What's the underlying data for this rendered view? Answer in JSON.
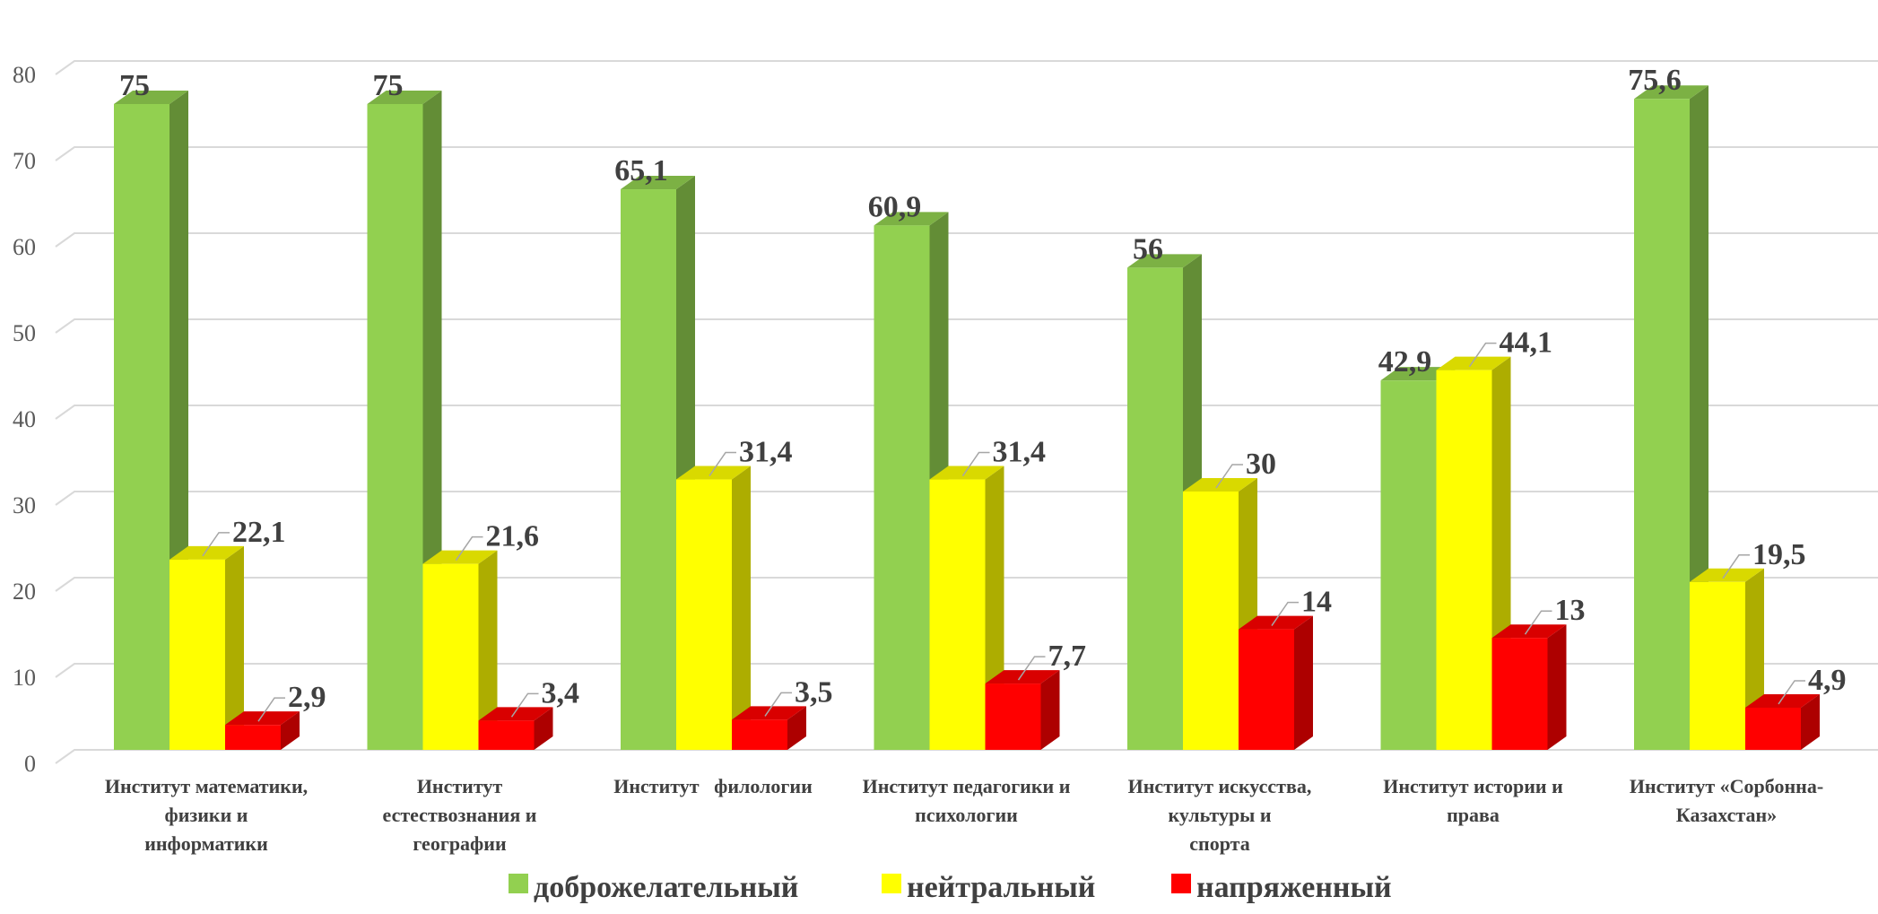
{
  "chart_data": {
    "type": "bar",
    "title": "",
    "xlabel": "",
    "ylabel": "",
    "ylim": [
      0,
      80
    ],
    "ytick_labels": [
      "0",
      "10",
      "20",
      "30",
      "40",
      "50",
      "60",
      "70",
      "80"
    ],
    "grid": true,
    "three_d": true,
    "legend_position": "bottom",
    "categories": [
      [
        "Институт математики,",
        "физики и",
        "информатики"
      ],
      [
        "Институт",
        "естествознания и",
        "географии"
      ],
      [
        "Институт   филологии"
      ],
      [
        "Институт педагогики и",
        "психологии"
      ],
      [
        "Институт искусства,",
        "культуры и",
        "спорта"
      ],
      [
        "Институт истории и",
        "права"
      ],
      [
        "Институт «Сорбонна-",
        "Казахстан»"
      ]
    ],
    "series": [
      {
        "name": "доброжелательный",
        "color": "#92d050",
        "values": [
          75,
          75,
          65.1,
          60.9,
          56,
          42.9,
          75.6
        ],
        "labels": [
          "75",
          "75",
          "65,1",
          "60,9",
          "56",
          "42,9",
          "75,6"
        ]
      },
      {
        "name": "нейтральный",
        "color": "#ffff00",
        "values": [
          22.1,
          21.6,
          31.4,
          31.4,
          30,
          44.1,
          19.5
        ],
        "labels": [
          "22,1",
          "21,6",
          "31,4",
          "31,4",
          "30",
          "44,1",
          "19,5"
        ]
      },
      {
        "name": "напряженный",
        "color": "#ff0000",
        "values": [
          2.9,
          3.4,
          3.5,
          7.7,
          14,
          13,
          4.9
        ],
        "labels": [
          "2,9",
          "3,4",
          "3,5",
          "7,7",
          "14",
          "13",
          "4,9"
        ]
      }
    ]
  }
}
